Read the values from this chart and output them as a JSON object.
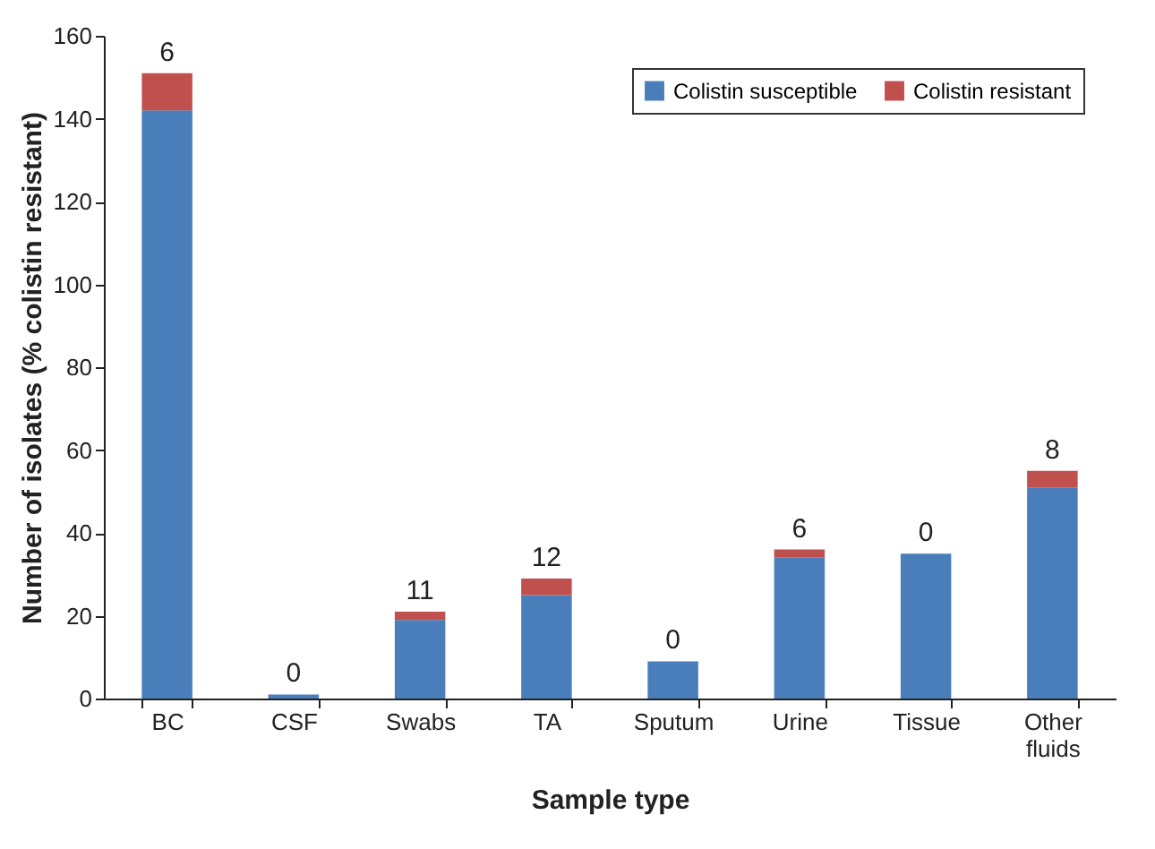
{
  "chart_data": {
    "type": "bar",
    "stacked": true,
    "xlabel": "Sample type",
    "ylabel": "Number of isolates (% colistin resistant)",
    "categories": [
      "BC",
      "CSF",
      "Swabs",
      "TA",
      "Sputum",
      "Urine",
      "Tissue",
      "Other fluids"
    ],
    "series": [
      {
        "name": "Colistin susceptible",
        "color": "#4a7ebb",
        "values": [
          142,
          1,
          19,
          25,
          9,
          34,
          35,
          51
        ]
      },
      {
        "name": "Colistin resistant",
        "color": "#c0504d",
        "values": [
          9,
          0,
          2,
          4,
          0,
          2,
          0,
          4
        ]
      }
    ],
    "ylim": [
      0,
      160
    ],
    "yticks": [
      0,
      20,
      40,
      60,
      80,
      100,
      120,
      140,
      160
    ],
    "grid": false,
    "legend": "top right",
    "annotations": [
      {
        "text": "6",
        "x": "BC",
        "y": 151
      },
      {
        "text": "0",
        "x": "CSF",
        "y": 1
      },
      {
        "text": "11",
        "x": "Swabs",
        "y": 21
      },
      {
        "text": "12",
        "x": "TA",
        "y": 29
      },
      {
        "text": "0",
        "x": "Sputum",
        "y": 9
      },
      {
        "text": "6",
        "x": "Urine",
        "y": 36
      },
      {
        "text": "0",
        "x": "Tissue",
        "y": 35
      },
      {
        "text": "8",
        "x": "Other fluids",
        "y": 55
      }
    ]
  }
}
